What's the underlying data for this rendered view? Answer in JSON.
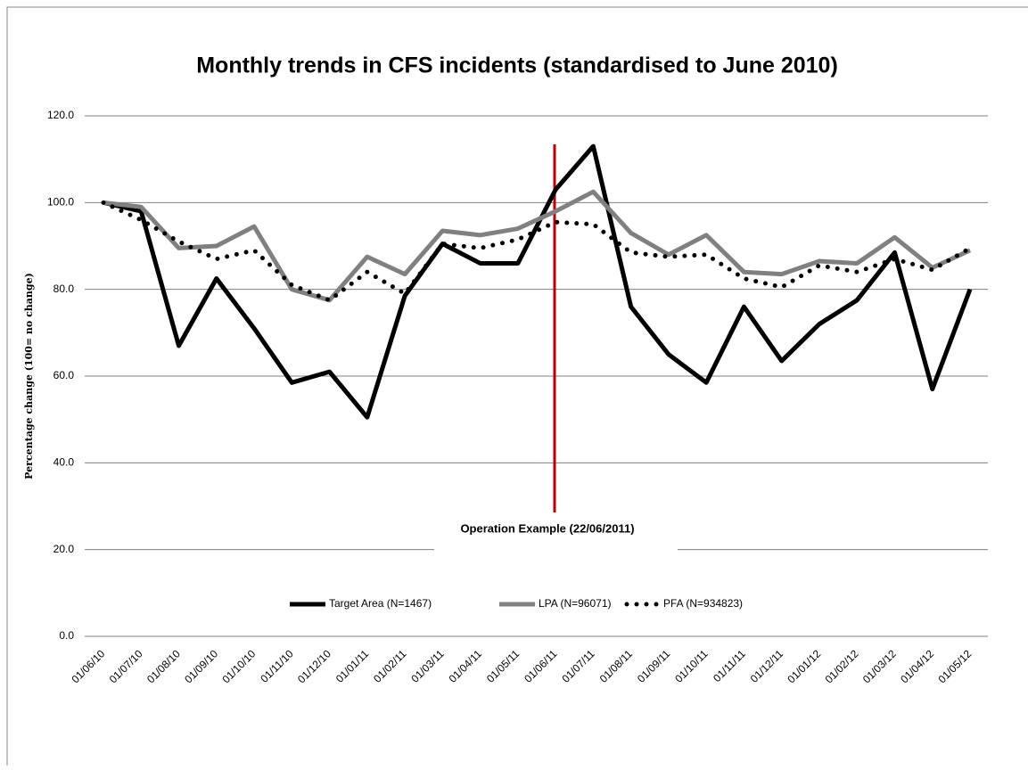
{
  "chart_data": {
    "type": "line",
    "title": "Monthly trends in CFS incidents (standardised to June 2010)",
    "y_label": "Percentage change  (100= no change)",
    "annotation": "Operation Example (22/06/2011)",
    "categories": [
      "01/06/10",
      "01/07/10",
      "01/08/10",
      "01/09/10",
      "01/10/10",
      "01/11/10",
      "01/12/10",
      "01/01/11",
      "01/02/11",
      "01/03/11",
      "01/04/11",
      "01/05/11",
      "01/06/11",
      "01/07/11",
      "01/08/11",
      "01/09/11",
      "01/10/11",
      "01/11/11",
      "01/12/11",
      "01/01/12",
      "01/02/12",
      "01/03/12",
      "01/04/12",
      "01/05/12"
    ],
    "series": [
      {
        "name": "Target Area (N=1467)",
        "color": "#000000",
        "style": "solid",
        "values": [
          100,
          98,
          67,
          82.5,
          71,
          58.5,
          61,
          50.5,
          78.5,
          90.5,
          86,
          86,
          103,
          113,
          76,
          65,
          58.5,
          76,
          63.5,
          72,
          77.5,
          88.5,
          57,
          80
        ]
      },
      {
        "name": "LPA (N=96071)",
        "color": "#808080",
        "style": "solid",
        "values": [
          100,
          99,
          89.5,
          90,
          94.5,
          80,
          77.5,
          87.5,
          83.5,
          93.5,
          92.5,
          94,
          98,
          102.5,
          93,
          88,
          92.5,
          84,
          83.5,
          86.5,
          86,
          92,
          85,
          89
        ]
      },
      {
        "name": "PFA (N=934823)",
        "color": "#000000",
        "style": "dotted",
        "values": [
          100,
          96,
          91,
          87,
          89,
          81,
          77.5,
          84,
          79,
          90.5,
          89.5,
          91.5,
          95.5,
          95,
          88.5,
          87.5,
          88,
          82.5,
          80.5,
          85.5,
          84,
          87,
          84.5,
          89.5
        ]
      }
    ],
    "ylim": [
      0,
      120
    ],
    "yticks": [
      {
        "value": 0,
        "label": "0.0"
      },
      {
        "value": 20,
        "label": "20.0"
      },
      {
        "value": 40,
        "label": "40.0"
      },
      {
        "value": 60,
        "label": "60.0"
      },
      {
        "value": 80,
        "label": "80.0"
      },
      {
        "value": 100,
        "label": "100.0"
      },
      {
        "value": 120,
        "label": "120.0"
      }
    ],
    "grid": true
  }
}
